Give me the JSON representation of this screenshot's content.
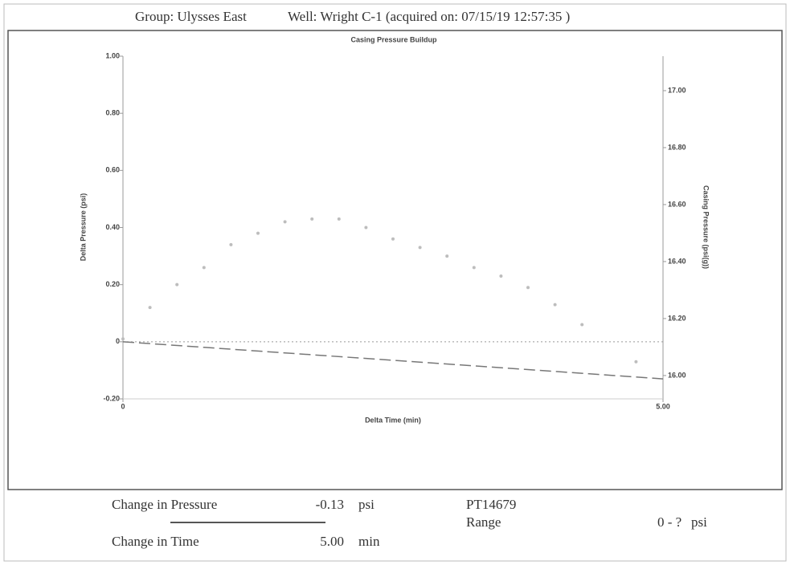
{
  "header": {
    "group": "Group: Ulysses East",
    "well": "Well: Wright C-1 (acquired on: 07/15/19 12:57:35 )"
  },
  "chart_data": {
    "type": "scatter",
    "title": "Casing Pressure Buildup",
    "x_label": "Delta Time (min)",
    "y_label": "Delta Pressure (psi)",
    "y2_label": "Casing Pressure (psi(g))",
    "x": [
      0,
      0.25,
      0.5,
      0.75,
      1,
      1.25,
      1.5,
      1.75,
      2,
      2.25,
      2.5,
      2.75,
      3,
      3.25,
      3.5,
      3.75,
      4,
      4.25,
      4.75
    ],
    "values": [
      0.01,
      0.12,
      0.2,
      0.26,
      0.34,
      0.38,
      0.42,
      0.43,
      0.43,
      0.4,
      0.36,
      0.33,
      0.3,
      0.26,
      0.23,
      0.19,
      0.13,
      0.06,
      -0.07
    ],
    "color": "#bdbdbd",
    "line": {
      "x": [
        0,
        5
      ],
      "values": [
        0,
        -0.13
      ],
      "color": "#777777"
    },
    "hline": 0,
    "xlim": [
      0,
      5
    ],
    "xticks": [
      0,
      {
        "value": 5,
        "label": "5.00"
      }
    ],
    "ylim": [
      -0.2,
      1
    ],
    "yticks": [
      {
        "value": 1,
        "label": "1.00"
      },
      {
        "value": 0.8,
        "label": "0.80"
      },
      {
        "value": 0.6,
        "label": "0.60"
      },
      {
        "value": 0.4,
        "label": "0.40"
      },
      {
        "value": 0.2,
        "label": "0.20"
      },
      0,
      {
        "value": -0.2,
        "label": "-0.20"
      }
    ],
    "y2lim": [
      15.918,
      17.121
    ],
    "y2ticks": [
      {
        "value": 17,
        "label": "17.00"
      },
      {
        "value": 16.8,
        "label": "16.80"
      },
      {
        "value": 16.6,
        "label": "16.60"
      },
      {
        "value": 16.4,
        "label": "16.40"
      },
      {
        "value": 16.2,
        "label": "16.20"
      },
      {
        "value": 16,
        "label": "16.00"
      }
    ]
  },
  "summary": {
    "pressure_label": "Change in Pressure",
    "pressure_value": "-0.13",
    "pressure_unit": "psi",
    "time_label": "Change in Time",
    "time_value": "5.00",
    "time_unit": "min",
    "sensor": "PT14679",
    "range_label": "Range",
    "range_value": "0 - ?",
    "range_unit": "psi"
  }
}
